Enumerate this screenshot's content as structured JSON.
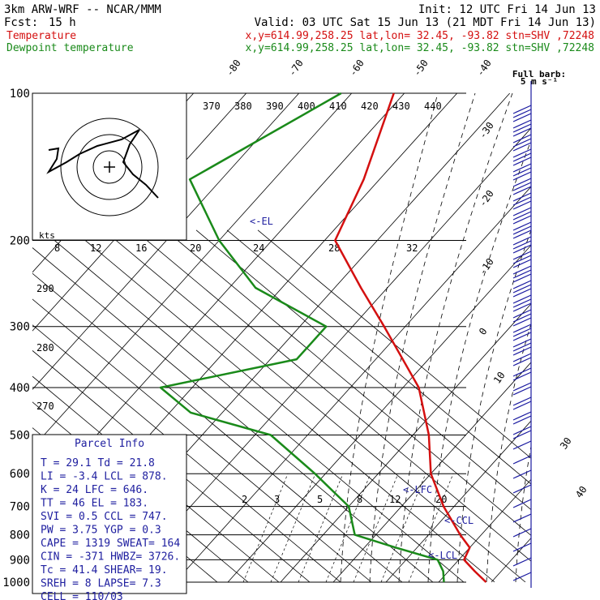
{
  "header": {
    "model": "3km ARW-WRF -- NCAR/MMM",
    "init": "Init: 12 UTC Fri 14 Jun 13",
    "fcst_label": "Fcst:",
    "fcst_value": "15 h",
    "valid": "Valid: 03 UTC Sat 15 Jun 13 (21 MDT Fri 14 Jun 13)",
    "temp_label": "Temperature",
    "temp_info": "x,y=614.99,258.25   lat,lon= 32.45, -93.82  stn=SHV ,72248",
    "dew_label": "Dewpoint temperature",
    "dew_info": "x,y=614.99,258.25   lat,lon= 32.45, -93.82  stn=SHV ,72248"
  },
  "full_barb": {
    "line1": "Full barb:",
    "line2": "5 m s⁻¹"
  },
  "hodograph_units": "kts",
  "parcel": {
    "title": "Parcel Info",
    "rows": [
      "T   =   29.1  Td  =  21.8",
      "LI  =   -3.4  LCL =  878.",
      "K   =     24  LFC =  646.",
      "TT  =     46  EL  =  183.",
      "SVI =    0.5  CCL =  747.",
      "PW  =   3.75  YGP =   0.3",
      "CAPE =  1319  SWEAT=  164",
      "CIN  =  -371  HWBZ= 3726.",
      "Tc   =  41.4  SHEAR=  19.",
      "SREH =     8  LAPSE=  7.3",
      "CELL = 110/03"
    ]
  },
  "levels": {
    "el": "<-EL",
    "lfc": "<-LFC",
    "ccl": "<-CCL",
    "lcl": "<-LCL"
  },
  "colors": {
    "temperature": "#d41010",
    "dewpoint": "#1a8a1a",
    "annotation": "#2020a0"
  },
  "chart_data": {
    "type": "line",
    "pressure_levels": [
      "100",
      "200",
      "300",
      "400",
      "500",
      "600",
      "700",
      "800",
      "900",
      "1000"
    ],
    "temperature_ticks": [
      "-80",
      "-70",
      "-60",
      "-50",
      "-40",
      "-30",
      "-20",
      "-10",
      "0",
      "10",
      "20",
      "30",
      "40"
    ],
    "theta_labels": [
      "370",
      "380",
      "390",
      "400",
      "410",
      "420",
      "430",
      "440"
    ],
    "mixing_ratio_top_labels": [
      "8",
      "12",
      "16",
      "20",
      "24",
      "28",
      "32"
    ],
    "mixing_ratio_low_labels": [
      "2",
      "3",
      "5",
      "8",
      "12",
      "20"
    ],
    "theta_side_labels": [
      "290",
      "280",
      "270"
    ],
    "series": [
      {
        "name": "Temperature",
        "pressure": [
          100,
          150,
          200,
          250,
          300,
          400,
          500,
          600,
          700,
          800,
          850,
          900,
          950,
          1000
        ],
        "temperature": [
          -72,
          -63,
          -58,
          -45,
          -34,
          -17,
          -7,
          0,
          8,
          16,
          20,
          21,
          25,
          29
        ]
      },
      {
        "name": "Dewpoint temperature",
        "pressure": [
          100,
          150,
          200,
          250,
          300,
          350,
          400,
          450,
          500,
          600,
          700,
          800,
          850,
          900,
          950,
          1000
        ],
        "temperature": [
          -82,
          -96,
          -80,
          -65,
          -45,
          -45,
          -66,
          -56,
          -37,
          -22,
          -10,
          -4,
          6,
          16,
          19,
          21
        ]
      }
    ]
  }
}
